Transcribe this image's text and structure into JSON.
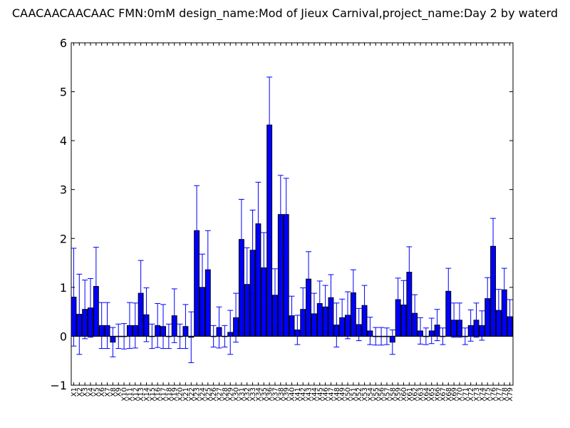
{
  "chart_data": {
    "type": "bar",
    "title": "CAACAACAACAAC  FMN:0mM  design_name:Mod of Jieux Carnival,project_name:Day 2 by waterd",
    "xlabel": "",
    "ylabel": "",
    "ylim": [
      -1,
      6
    ],
    "yticks": [
      -1,
      0,
      1,
      2,
      3,
      4,
      5,
      6
    ],
    "grid": false,
    "colors": {
      "bar_fill": "#0000ff",
      "error_bar": "#0000ff",
      "axis": "#000000"
    },
    "categories": [
      "X1",
      "X2",
      "X3",
      "X4",
      "X5",
      "X6",
      "X7",
      "X8",
      "X9",
      "X10",
      "X11",
      "X12",
      "X13",
      "X14",
      "X15",
      "X16",
      "X17",
      "X18",
      "X19",
      "X20",
      "X21",
      "X22",
      "X23",
      "X24",
      "X25",
      "X26",
      "X27",
      "X28",
      "X29",
      "X30",
      "X31",
      "X32",
      "X33",
      "X34",
      "X35",
      "X36",
      "X37",
      "X38",
      "X39",
      "X40",
      "X41",
      "X42",
      "X43",
      "X44",
      "X45",
      "X46",
      "X47",
      "X48",
      "X49",
      "X50",
      "X51",
      "X52",
      "X53",
      "X54",
      "X55",
      "X56",
      "X57",
      "X58",
      "X59",
      "X60",
      "X61",
      "X62",
      "X63",
      "X64",
      "X65",
      "X66",
      "X67",
      "X68",
      "X69",
      "X70",
      "X71",
      "X72",
      "X73",
      "X74",
      "X75",
      "X76",
      "X77",
      "X78",
      "X79"
    ],
    "values": [
      0.8,
      0.45,
      0.55,
      0.58,
      1.02,
      0.22,
      0.22,
      -0.12,
      0.0,
      0.0,
      0.22,
      0.22,
      0.88,
      0.44,
      0.0,
      0.22,
      0.2,
      0.0,
      0.42,
      0.0,
      0.2,
      -0.02,
      2.16,
      1.0,
      1.36,
      0.0,
      0.18,
      0.0,
      0.08,
      0.38,
      1.98,
      1.06,
      1.76,
      2.3,
      1.4,
      4.32,
      0.84,
      2.49,
      2.49,
      0.42,
      0.13,
      0.55,
      1.17,
      0.46,
      0.67,
      0.6,
      0.79,
      0.23,
      0.38,
      0.43,
      0.89,
      0.24,
      0.63,
      0.11,
      0.0,
      0.0,
      0.0,
      -0.12,
      0.75,
      0.64,
      1.31,
      0.47,
      0.11,
      0.0,
      0.11,
      0.23,
      0.0,
      0.92,
      0.33,
      0.33,
      0.0,
      0.22,
      0.33,
      0.22,
      0.77,
      1.84,
      0.53,
      0.95,
      0.4
    ],
    "errors": [
      1.0,
      0.82,
      0.6,
      0.6,
      0.8,
      0.47,
      0.47,
      0.3,
      0.25,
      0.26,
      0.47,
      0.46,
      0.67,
      0.55,
      0.25,
      0.45,
      0.45,
      0.25,
      0.55,
      0.25,
      0.45,
      0.52,
      0.92,
      0.68,
      0.8,
      0.22,
      0.42,
      0.22,
      0.45,
      0.5,
      0.82,
      0.75,
      0.82,
      0.85,
      0.72,
      0.98,
      0.54,
      0.8,
      0.74,
      0.4,
      0.3,
      0.44,
      0.56,
      0.42,
      0.46,
      0.44,
      0.47,
      0.45,
      0.38,
      0.48,
      0.47,
      0.33,
      0.41,
      0.28,
      0.18,
      0.18,
      0.17,
      0.25,
      0.44,
      0.5,
      0.52,
      0.38,
      0.27,
      0.17,
      0.26,
      0.32,
      0.17,
      0.47,
      0.35,
      0.35,
      0.17,
      0.32,
      0.35,
      0.3,
      0.43,
      0.57,
      0.43,
      0.44,
      0.35
    ]
  }
}
